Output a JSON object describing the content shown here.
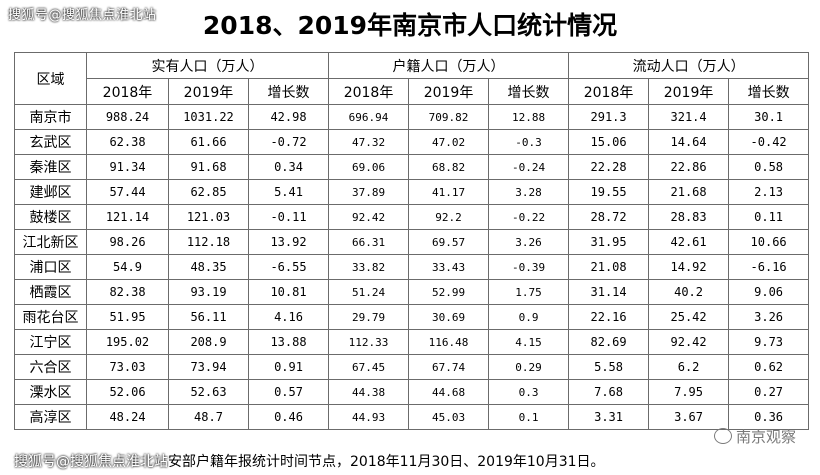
{
  "watermark_top": "搜狐号@搜狐焦点淮北站",
  "title": "2018、2019年南京市人口统计情况",
  "header": {
    "region": "区域",
    "groups": [
      "实有人口（万人）",
      "户籍人口（万人）",
      "流动人口（万人）"
    ],
    "sub": [
      "2018年",
      "2019年",
      "增长数"
    ]
  },
  "rows": [
    {
      "region": "南京市",
      "v": [
        "988.24",
        "1031.22",
        "42.98",
        "696.94",
        "709.82",
        "12.88",
        "291.3",
        "321.4",
        "30.1"
      ]
    },
    {
      "region": "玄武区",
      "v": [
        "62.38",
        "61.66",
        "-0.72",
        "47.32",
        "47.02",
        "-0.3",
        "15.06",
        "14.64",
        "-0.42"
      ]
    },
    {
      "region": "秦淮区",
      "v": [
        "91.34",
        "91.68",
        "0.34",
        "69.06",
        "68.82",
        "-0.24",
        "22.28",
        "22.86",
        "0.58"
      ]
    },
    {
      "region": "建邺区",
      "v": [
        "57.44",
        "62.85",
        "5.41",
        "37.89",
        "41.17",
        "3.28",
        "19.55",
        "21.68",
        "2.13"
      ]
    },
    {
      "region": "鼓楼区",
      "v": [
        "121.14",
        "121.03",
        "-0.11",
        "92.42",
        "92.2",
        "-0.22",
        "28.72",
        "28.83",
        "0.11"
      ]
    },
    {
      "region": "江北新区",
      "v": [
        "98.26",
        "112.18",
        "13.92",
        "66.31",
        "69.57",
        "3.26",
        "31.95",
        "42.61",
        "10.66"
      ]
    },
    {
      "region": "浦口区",
      "v": [
        "54.9",
        "48.35",
        "-6.55",
        "33.82",
        "33.43",
        "-0.39",
        "21.08",
        "14.92",
        "-6.16"
      ]
    },
    {
      "region": "栖霞区",
      "v": [
        "82.38",
        "93.19",
        "10.81",
        "51.24",
        "52.99",
        "1.75",
        "31.14",
        "40.2",
        "9.06"
      ]
    },
    {
      "region": "雨花台区",
      "v": [
        "51.95",
        "56.11",
        "4.16",
        "29.79",
        "30.69",
        "0.9",
        "22.16",
        "25.42",
        "3.26"
      ]
    },
    {
      "region": "江宁区",
      "v": [
        "195.02",
        "208.9",
        "13.88",
        "112.33",
        "116.48",
        "4.15",
        "82.69",
        "92.42",
        "9.73"
      ]
    },
    {
      "region": "六合区",
      "v": [
        "73.03",
        "73.94",
        "0.91",
        "67.45",
        "67.74",
        "0.29",
        "5.58",
        "6.2",
        "0.62"
      ]
    },
    {
      "region": "溧水区",
      "v": [
        "52.06",
        "52.63",
        "0.57",
        "44.38",
        "44.68",
        "0.3",
        "7.68",
        "7.95",
        "0.27"
      ]
    },
    {
      "region": "高淳区",
      "v": [
        "48.24",
        "48.7",
        "0.46",
        "44.93",
        "45.03",
        "0.1",
        "3.31",
        "3.67",
        "0.36"
      ]
    }
  ],
  "note_watermark": "搜狐号@搜狐焦点淮北站",
  "note_text": "安部户籍年报统计时间节点，2018年11月30日、2019年10月31日。",
  "stamp": "南京观察"
}
